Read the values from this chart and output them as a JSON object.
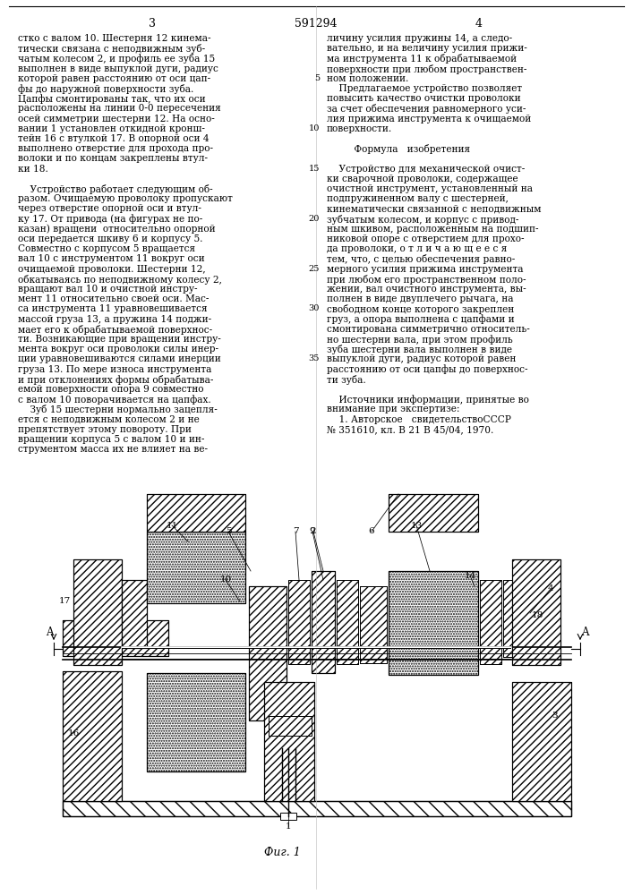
{
  "page_num_left": "3",
  "page_num_center": "591294",
  "page_num_right": "4",
  "bg": "#ffffff",
  "tc": "#000000",
  "fs": 7.6,
  "lh": 11.2,
  "left_lines": [
    "стко с валом 10. Шестерня 12 кинема-",
    "тически связана с неподвижным зуб-",
    "чатым колесом 2, и профиль ее зуба 15",
    "выполнен в виде выпуклой дуги, радиус",
    "которой равен расстоянию от оси цап-",
    "фы до наружной поверхности зуба.",
    "Цапфы смонтированы так, что их оси",
    "расположены на линии 0-0 пересечения",
    "осей симметрии шестерни 12. На осно-",
    "вании 1 установлен откидной кронш-",
    "тейн 16 с втулкой 17. В опорной оси 4",
    "выполнено отверстие для прохода про-",
    "волоки и по концам закреплены втул-",
    "ки 18.",
    "",
    "    Устройство работает следующим об-",
    "разом. Очищаемую проволоку пропускают",
    "через отверстие опорной оси и втул-",
    "ку 17. От привода (на фигурах не по-",
    "казан) вращени  относительно опорной",
    "оси передается шкиву 6 и корпусу 5.",
    "Совместно с корпусом 5 вращается",
    "вал 10 с инструментом 11 вокруг оси",
    "очищаемой проволоки. Шестерни 12,",
    "обкатываясь по неподвижному колесу 2,",
    "вращают вал 10 и очистной инстру-",
    "мент 11 относительно своей оси. Мас-",
    "са инструмента 11 уравновешивается",
    "массой груза 13, а пружина 14 поджи-",
    "мает его к обрабатываемой поверхнос-",
    "ти. Возникающие при вращении инстру-",
    "мента вокруг оси проволоки силы инер-",
    "ции уравновешиваются силами инерции",
    "груза 13. По мере износа инструмента",
    "и при отклонениях формы обрабатыва-",
    "емой поверхности опора 9 совместно",
    "с валом 10 поворачивается на цапфах.",
    "    Зуб 15 шестерни нормально зацепля-",
    "ется с неподвижным колесом 2 и не",
    "препятствует этому повороту. При",
    "вращении корпуса 5 с валом 10 и ин-",
    "струментом масса их не влияет на ве-"
  ],
  "right_lines": [
    "личину усилия пружины 14, а следо-",
    "вательно, и на величину усилия прижи-",
    "ма инструмента 11 к обрабатываемой",
    "поверхности при любом пространствен-",
    "ном положении.",
    "    Предлагаемое устройство позволяет",
    "повысить качество очистки проволоки",
    "за счет обеспечения равномерного уси-",
    "лия прижима инструмента к очищаемой",
    "поверхности.",
    "",
    "         Формула   изобретения",
    "",
    "    Устройство для механической очист-",
    "ки сварочной проволоки, содержащее",
    "очистной инструмент, установленный на",
    "подпружиненном валу с шестерней,",
    "кинематически связанной с неподвижным",
    "зубчатым колесом, и корпус с привод-",
    "ным шкивом, расположенным на подшип-",
    "никовой опоре с отверстием для прохо-",
    "да проволоки, о т л и ч а ю щ е е с я",
    "тем, что, с целью обеспечения равно-",
    "мерного усилия прижима инструмента",
    "при любом его пространственном поло-",
    "жении, вал очистного инструмента, вы-",
    "полнен в виде двуплечего рычага, на",
    "свободном конце которого закреплен",
    "груз, а опора выполнена с цапфами и",
    "смонтирована симметрично относитель-",
    "но шестерни вала, при этом профиль",
    "зуба шестерни вала выполнен в виде",
    "выпуклой дуги, радиус которой равен",
    "расстоянию от оси цапфы до поверхнос-",
    "ти зуба.",
    "",
    "    Источники информации, принятые во",
    "внимание при экспертизе:",
    "    1. Авторское   свидетельствоСССР",
    "№ 351610, кл. В 21 В 45/04, 1970."
  ],
  "right_line_numbers": {
    "4": "5",
    "9": "10",
    "13": "15",
    "18": "20",
    "23": "25",
    "27": "30",
    "32": "35"
  },
  "caption": "Фиг. 1"
}
